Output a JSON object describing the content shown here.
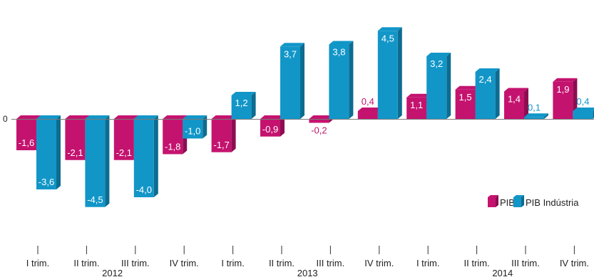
{
  "chart_data": {
    "type": "bar",
    "title": "",
    "xlabel": "",
    "ylabel": "",
    "zero_label": "0",
    "grid": false,
    "legend_position": "right",
    "categories": [
      "I trim.",
      "II trim.",
      "III trim.",
      "IV trim.",
      "I trim.",
      "II trim.",
      "III trim.",
      "IV trim.",
      "I trim.",
      "II trim.",
      "III trim.",
      "IV trim."
    ],
    "years": [
      {
        "label": "2012",
        "span": [
          0,
          3
        ]
      },
      {
        "label": "2013",
        "span": [
          4,
          7
        ]
      },
      {
        "label": "2014",
        "span": [
          8,
          11
        ]
      }
    ],
    "series": [
      {
        "name": "PIB",
        "color": "#c4136f",
        "values": [
          -1.6,
          -2.1,
          -2.1,
          -1.8,
          -1.7,
          -0.9,
          -0.2,
          0.4,
          1.1,
          1.5,
          1.4,
          1.9
        ],
        "labels": [
          "-1,6",
          "-2,1",
          "-2,1",
          "-1,8",
          "-1,7",
          "-0,9",
          "-0,2",
          "0,4",
          "1,1",
          "1,5",
          "1,4",
          "1,9"
        ]
      },
      {
        "name": "PIB Indústria",
        "color": "#1296c8",
        "values": [
          -3.6,
          -4.5,
          -4.0,
          -1.0,
          1.2,
          3.7,
          3.8,
          4.5,
          3.2,
          2.4,
          0.1,
          0.4
        ],
        "labels": [
          "-3,6",
          "-4,5",
          "-4,0",
          "-1,0",
          "1,2",
          "3,7",
          "3,8",
          "4,5",
          "3,2",
          "2,4",
          "0,1",
          "0,4"
        ]
      }
    ]
  }
}
